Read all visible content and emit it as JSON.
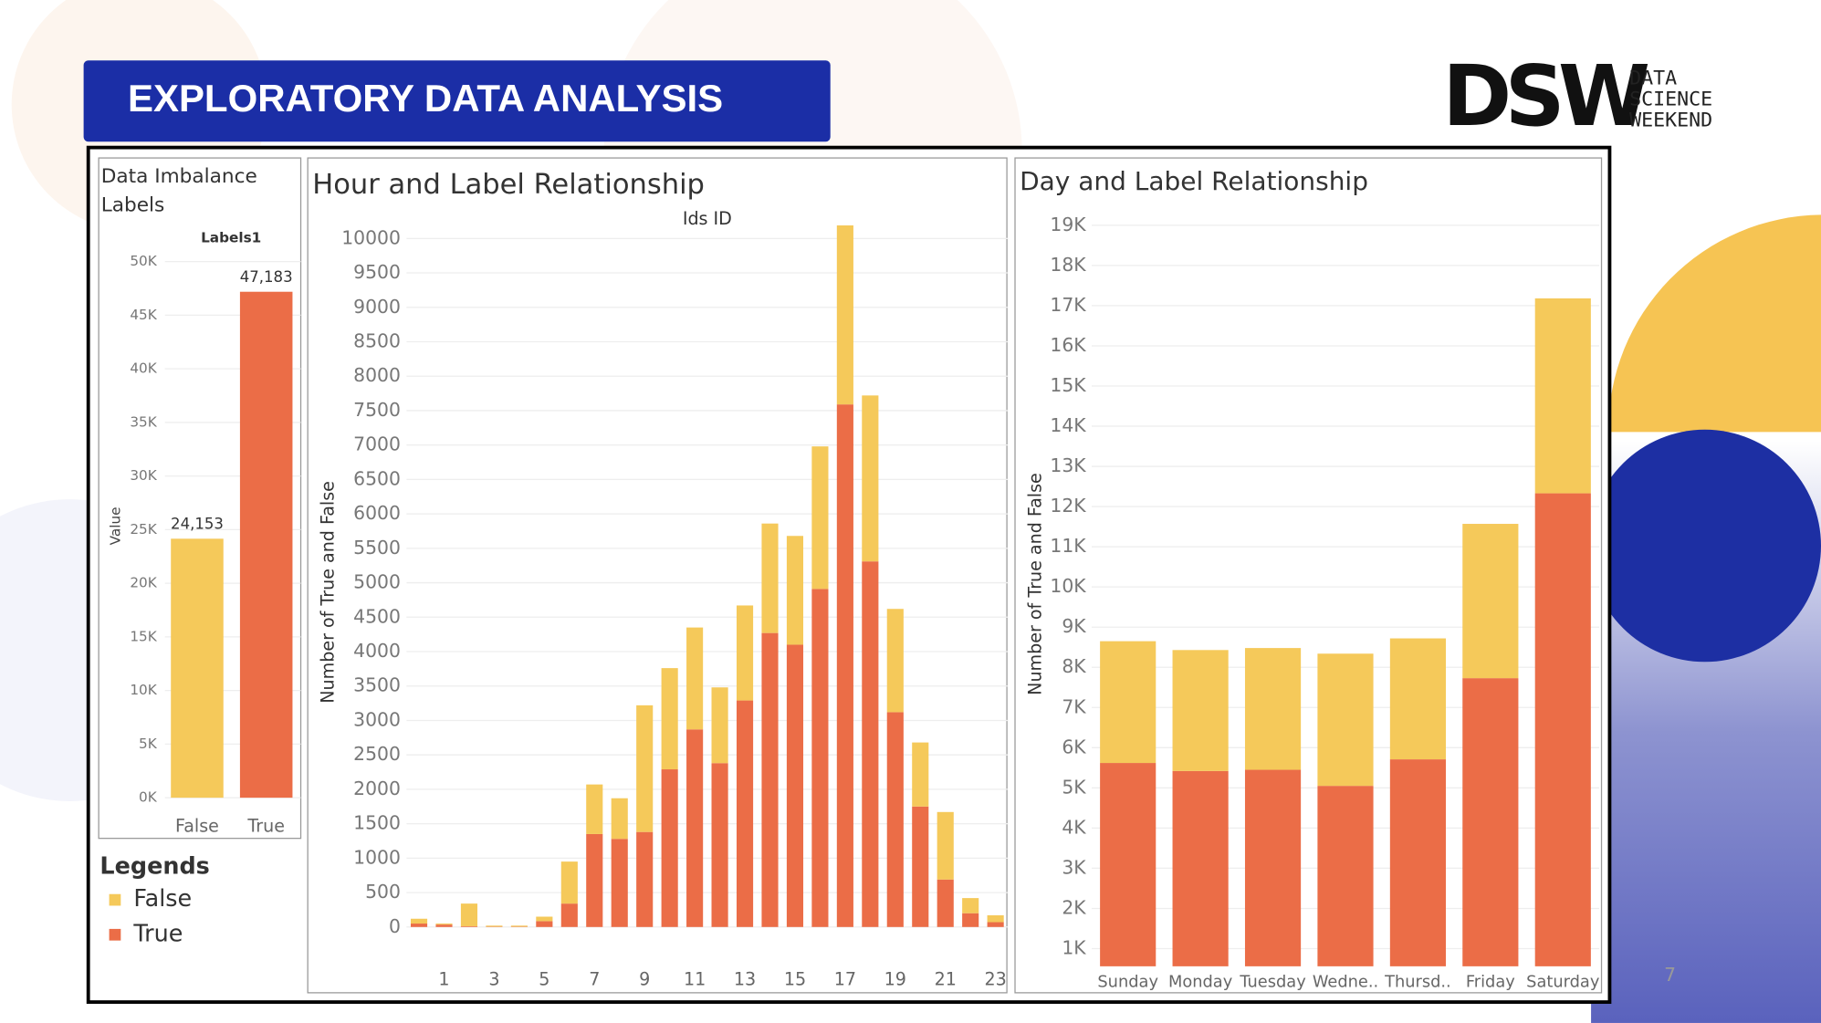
{
  "slide": {
    "title": "EXPLORATORY DATA ANALYSIS",
    "page_number": "7"
  },
  "logo": {
    "mark": "DSW",
    "lines": [
      "DATA",
      "SCIENCE",
      "WEEKEND"
    ]
  },
  "legend": {
    "title": "Legends"
  },
  "chart_data": [
    {
      "type": "bar",
      "title": "Data Imbalance Labels",
      "subtitle": "Labels1",
      "y_label": "Value",
      "categories": [
        "False",
        "True"
      ],
      "values": [
        24153,
        47183
      ],
      "value_labels": [
        "24,153",
        "47,183"
      ],
      "colors": [
        "#f5c95a",
        "#eb6d47"
      ],
      "ylim": [
        0,
        51000
      ],
      "yticks": [
        {
          "value": 0,
          "label": "0K"
        },
        {
          "value": 5000,
          "label": "5K"
        },
        {
          "value": 10000,
          "label": "10K"
        },
        {
          "value": 15000,
          "label": "15K"
        },
        {
          "value": 20000,
          "label": "20K"
        },
        {
          "value": 25000,
          "label": "25K"
        },
        {
          "value": 30000,
          "label": "30K"
        },
        {
          "value": 35000,
          "label": "35K"
        },
        {
          "value": 40000,
          "label": "40K"
        },
        {
          "value": 45000,
          "label": "45K"
        },
        {
          "value": 50000,
          "label": "50K"
        }
      ],
      "grid": true
    },
    {
      "type": "stacked_bar",
      "title": "Hour and Label Relationship",
      "subtitle": "Ids ID",
      "y_label": "Number of True and False",
      "categories": [
        null,
        1,
        null,
        3,
        null,
        5,
        null,
        7,
        null,
        9,
        null,
        11,
        null,
        13,
        null,
        15,
        null,
        17,
        null,
        19,
        null,
        21,
        null,
        23
      ],
      "series": [
        {
          "name": "True",
          "color": "#eb6d47",
          "values": [
            50,
            35,
            10,
            5,
            5,
            85,
            340,
            1350,
            1280,
            1380,
            2290,
            2870,
            2380,
            3290,
            4270,
            4100,
            4910,
            7590,
            5310,
            3120,
            1750,
            690,
            200,
            70
          ]
        },
        {
          "name": "False",
          "color": "#f5c95a",
          "values": [
            70,
            15,
            330,
            15,
            15,
            65,
            610,
            720,
            590,
            1840,
            1470,
            1480,
            1100,
            1380,
            1590,
            1580,
            2070,
            2600,
            2410,
            1500,
            930,
            980,
            220,
            100
          ]
        }
      ],
      "ylim": [
        -500,
        10200
      ],
      "yticks": [
        0,
        500,
        1000,
        1500,
        2000,
        2500,
        3000,
        3500,
        4000,
        4500,
        5000,
        5500,
        6000,
        6500,
        7000,
        7500,
        8000,
        8500,
        9000,
        9500,
        10000
      ],
      "grid": true
    },
    {
      "type": "stacked_bar",
      "title": "Day and Label Relationship",
      "y_label": "Number of True and False",
      "categories": [
        "Sunday",
        "Monday",
        "Tuesday",
        "Wedne..",
        "Thursd..",
        "Friday",
        "Saturday"
      ],
      "series": [
        {
          "name": "True",
          "color": "#eb6d47",
          "values": [
            5620,
            5420,
            5450,
            5050,
            5710,
            7730,
            12330
          ]
        },
        {
          "name": "False",
          "color": "#f5c95a",
          "values": [
            3030,
            3010,
            3030,
            3290,
            3010,
            3840,
            4850
          ]
        }
      ],
      "ylim": [
        560,
        19300
      ],
      "yticks": [
        {
          "value": 1000,
          "label": "1K"
        },
        {
          "value": 2000,
          "label": "2K"
        },
        {
          "value": 3000,
          "label": "3K"
        },
        {
          "value": 4000,
          "label": "4K"
        },
        {
          "value": 5000,
          "label": "5K"
        },
        {
          "value": 6000,
          "label": "6K"
        },
        {
          "value": 7000,
          "label": "7K"
        },
        {
          "value": 8000,
          "label": "8K"
        },
        {
          "value": 9000,
          "label": "9K"
        },
        {
          "value": 10000,
          "label": "10K"
        },
        {
          "value": 11000,
          "label": "11K"
        },
        {
          "value": 12000,
          "label": "12K"
        },
        {
          "value": 13000,
          "label": "13K"
        },
        {
          "value": 14000,
          "label": "14K"
        },
        {
          "value": 15000,
          "label": "15K"
        },
        {
          "value": 16000,
          "label": "16K"
        },
        {
          "value": 17000,
          "label": "17K"
        },
        {
          "value": 18000,
          "label": "18K"
        },
        {
          "value": 19000,
          "label": "19K"
        }
      ],
      "grid": true
    }
  ]
}
